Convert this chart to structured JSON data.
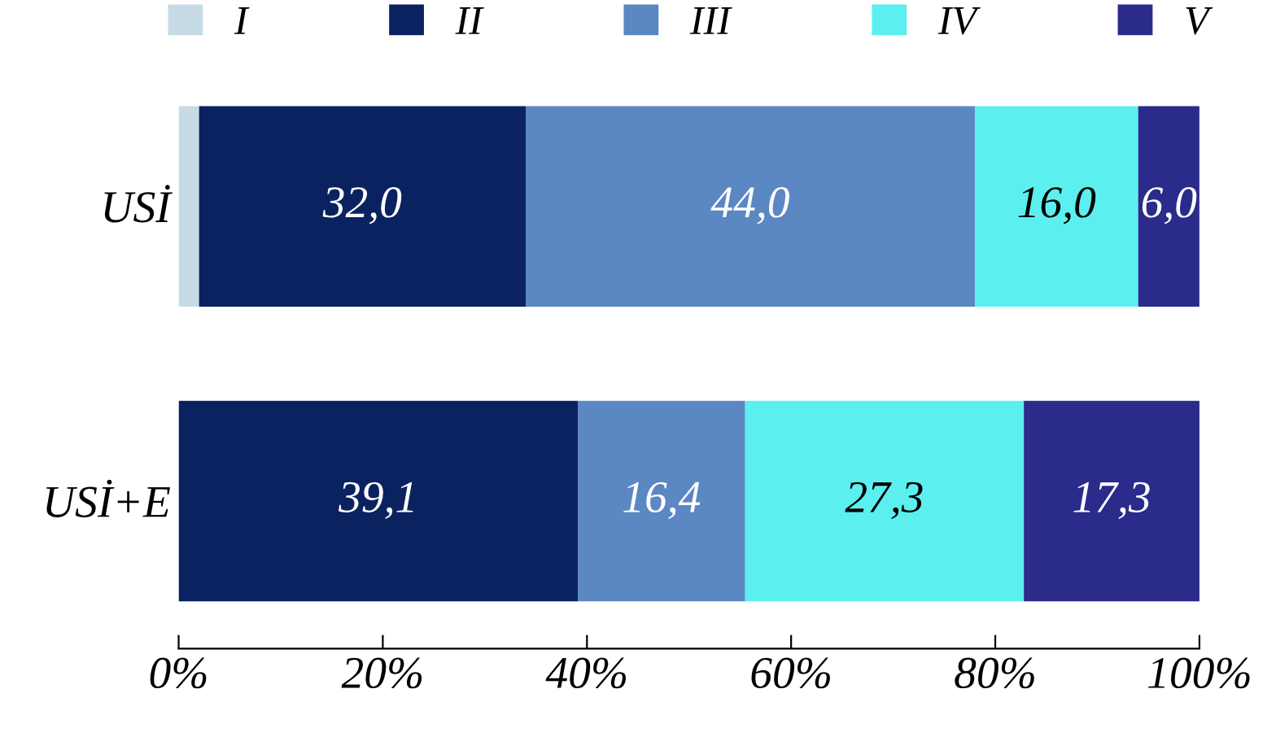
{
  "chart_data": {
    "type": "bar",
    "orientation": "horizontal",
    "stacked": true,
    "categories": [
      "USİ",
      "USİ+E"
    ],
    "series": [
      {
        "name": "I",
        "color": "#c6dbe6",
        "values": [
          2.0,
          null
        ],
        "value_labels": [
          null,
          null
        ]
      },
      {
        "name": "II",
        "color": "#0b2260",
        "values": [
          32.0,
          39.1
        ],
        "value_labels": [
          "32,0",
          "39,1"
        ]
      },
      {
        "name": "III",
        "color": "#5b87c2",
        "values": [
          44.0,
          16.4
        ],
        "value_labels": [
          "44,0",
          "16,4"
        ]
      },
      {
        "name": "IV",
        "color": "#5cefef",
        "values": [
          16.0,
          27.3
        ],
        "value_labels": [
          "16,0",
          "27,3"
        ]
      },
      {
        "name": "V",
        "color": "#2b2b8c",
        "values": [
          6.0,
          17.3
        ],
        "value_labels": [
          "6,0",
          "17,3"
        ]
      }
    ],
    "xlim": [
      0,
      100
    ],
    "xticks": [
      {
        "value": 0,
        "label": "0%"
      },
      {
        "value": 20,
        "label": "20%"
      },
      {
        "value": 40,
        "label": "40%"
      },
      {
        "value": 60,
        "label": "60%"
      },
      {
        "value": 80,
        "label": "80%"
      },
      {
        "value": 100,
        "label": "100%"
      }
    ],
    "legend": "top",
    "grid": false
  }
}
